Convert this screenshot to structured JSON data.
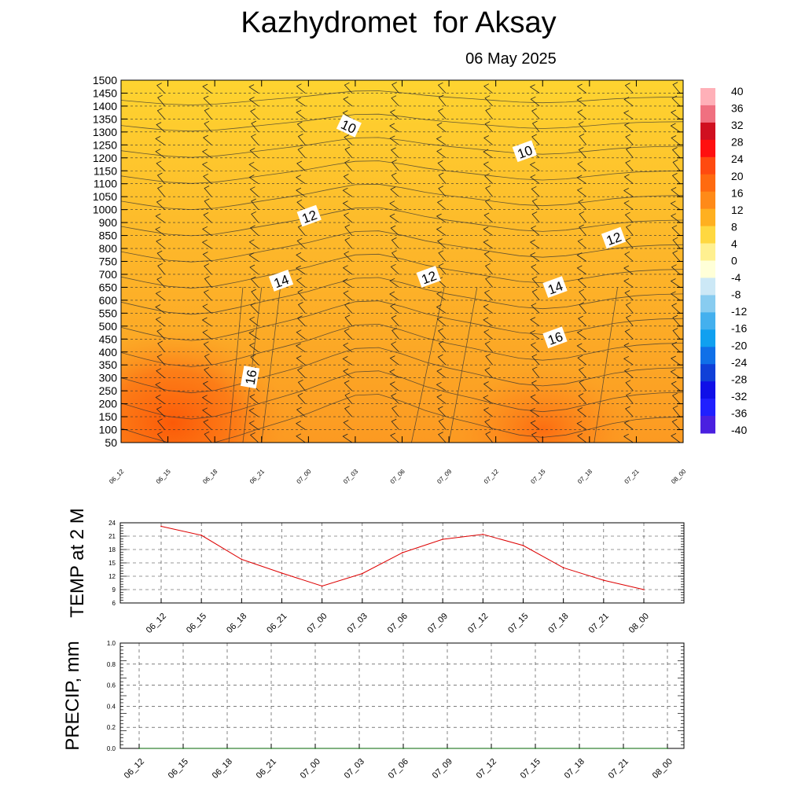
{
  "title": "Kazhydromet  for Aksay",
  "subtitle": "06 May 2025",
  "time_labels": [
    "06_12",
    "06_15",
    "06_18",
    "06_21",
    "07_00",
    "07_03",
    "07_06",
    "07_09",
    "07_12",
    "07_15",
    "07_18",
    "07_21",
    "08_00"
  ],
  "chart_data": [
    {
      "type": "heatmap",
      "description_kind": "time-height cross section of temperature with contours and wind barbs",
      "y_levels": [
        50,
        100,
        150,
        200,
        250,
        300,
        350,
        400,
        450,
        500,
        550,
        600,
        650,
        700,
        750,
        800,
        850,
        900,
        1000,
        1050,
        1100,
        1150,
        1200,
        1250,
        1300,
        1350,
        1400,
        1450,
        1500
      ],
      "x_ticks": [
        "06_12",
        "06_15",
        "06_18",
        "06_21",
        "07_00",
        "07_03",
        "07_06",
        "07_09",
        "07_12",
        "07_15",
        "07_18",
        "07_21",
        "08_00"
      ],
      "colorbar": {
        "labels": [
          "40",
          "36",
          "32",
          "28",
          "24",
          "20",
          "16",
          "12",
          "8",
          "4",
          "0",
          "-4",
          "-8",
          "-12",
          "-16",
          "-20",
          "-24",
          "-28",
          "-32",
          "-36",
          "-40"
        ],
        "range": [
          -40,
          40
        ]
      },
      "contour_labels": [
        {
          "text": "10",
          "time_index": 4.85,
          "level_index": 24.5
        },
        {
          "text": "10",
          "time_index": 8.6,
          "level_index": 22.5
        },
        {
          "text": "12",
          "time_index": 4.0,
          "level_index": 17.5
        },
        {
          "text": "12",
          "time_index": 6.55,
          "level_index": 12.8
        },
        {
          "text": "12",
          "time_index": 10.5,
          "level_index": 15.8
        },
        {
          "text": "14",
          "time_index": 3.4,
          "level_index": 12.5
        },
        {
          "text": "14",
          "time_index": 9.25,
          "level_index": 12.0
        },
        {
          "text": "16",
          "time_index": 2.75,
          "level_index": 5.0
        },
        {
          "text": "16",
          "time_index": 9.25,
          "level_index": 8.1
        }
      ],
      "grid": true
    },
    {
      "type": "line",
      "ylabel": "TEMP at 2 M",
      "x": [
        "06_12",
        "06_15",
        "06_18",
        "06_21",
        "07_00",
        "07_03",
        "07_06",
        "07_09",
        "07_12",
        "07_15",
        "07_18",
        "07_21",
        "08_00"
      ],
      "y": [
        23.2,
        21.2,
        15.8,
        12.7,
        9.8,
        12.6,
        17.3,
        20.3,
        21.4,
        18.9,
        13.9,
        11.1,
        9.0
      ],
      "y_ticks": [
        "6",
        "9",
        "12",
        "15",
        "18",
        "21",
        "24"
      ],
      "ylim": [
        6,
        24
      ],
      "color": "#dd0000",
      "grid": true
    },
    {
      "type": "line",
      "ylabel": "PRECIP, mm",
      "x": [
        "06_12",
        "06_15",
        "06_18",
        "06_21",
        "07_00",
        "07_03",
        "07_06",
        "07_09",
        "07_12",
        "07_15",
        "07_18",
        "07_21",
        "08_00"
      ],
      "y": [
        0,
        0,
        0,
        0,
        0,
        0,
        0,
        0,
        0,
        0,
        0,
        0,
        0
      ],
      "y_ticks": [
        "0.0",
        "0.2",
        "0.4",
        "0.6",
        "0.8",
        "1.0"
      ],
      "ylim": [
        0,
        1
      ],
      "color": "#006400",
      "grid": true
    }
  ]
}
